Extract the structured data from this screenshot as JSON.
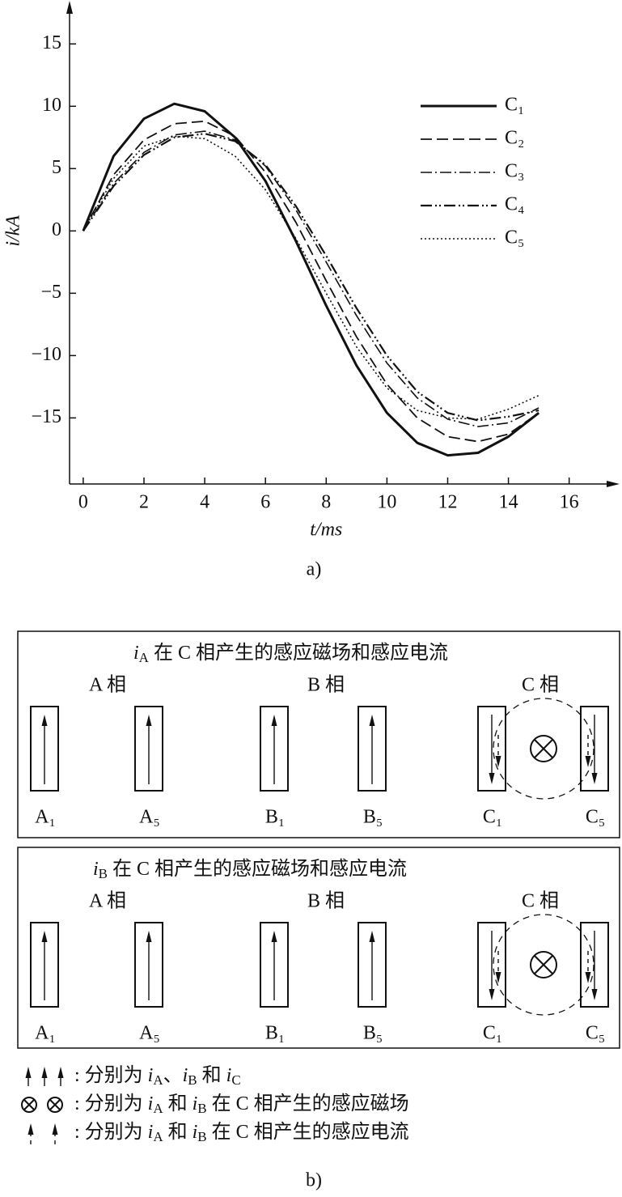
{
  "chart_data": {
    "type": "line",
    "x_label": "t/ms",
    "y_label": "i/kA",
    "caption": "a)",
    "x": [
      0,
      1,
      2,
      3,
      4,
      5,
      6,
      7,
      8,
      9,
      10,
      11,
      12,
      13,
      14,
      15
    ],
    "series": [
      {
        "name": "C₁",
        "color": "#111111",
        "width": 3,
        "dash": "",
        "values": [
          0,
          6.0,
          9.0,
          10.2,
          9.6,
          7.5,
          4.0,
          -0.8,
          -6.0,
          -10.8,
          -14.6,
          -17.0,
          -18.0,
          -17.8,
          -16.5,
          -14.6
        ]
      },
      {
        "name": "C₂",
        "color": "#111111",
        "width": 1.8,
        "dash": "14 6",
        "values": [
          0,
          4.5,
          7.3,
          8.6,
          8.8,
          7.6,
          4.7,
          0.7,
          -4.0,
          -8.5,
          -12.3,
          -15.0,
          -16.5,
          -16.9,
          -16.3,
          -14.6
        ]
      },
      {
        "name": "C₃",
        "color": "#111111",
        "width": 1.6,
        "dash": "14 4 2 4",
        "values": [
          0,
          3.8,
          6.3,
          7.7,
          8.0,
          7.3,
          5.2,
          1.7,
          -2.5,
          -6.8,
          -10.6,
          -13.4,
          -15.1,
          -15.7,
          -15.4,
          -14.2
        ]
      },
      {
        "name": "C₄",
        "color": "#111111",
        "width": 2.2,
        "dash": "14 4 2 3 2 4",
        "values": [
          0,
          3.6,
          6.1,
          7.5,
          7.8,
          7.2,
          5.3,
          2.0,
          -2.0,
          -6.2,
          -10.0,
          -12.9,
          -14.6,
          -15.2,
          -14.9,
          -14.4
        ]
      },
      {
        "name": "C₅",
        "color": "#111111",
        "width": 1.6,
        "dash": "2 3",
        "values": [
          0,
          4.2,
          6.8,
          7.6,
          7.4,
          6.0,
          3.3,
          -0.6,
          -5.0,
          -9.3,
          -12.6,
          -14.4,
          -15.0,
          -15.1,
          -14.3,
          -13.2
        ]
      }
    ],
    "xlim": [
      -0.45,
      17.5
    ],
    "ylim": [
      -20.3,
      18.2
    ],
    "xticks": [
      0,
      2,
      4,
      6,
      8,
      10,
      12,
      14,
      16
    ],
    "yticks": [
      {
        "value": -15,
        "label": "−15"
      },
      {
        "value": -10,
        "label": "−10"
      },
      {
        "value": -5,
        "label": "−5"
      },
      0,
      5,
      10,
      15
    ]
  },
  "diagram": {
    "caption": "b)",
    "panels": [
      {
        "title_var": "i",
        "title_sub": "A",
        "title_text": " 在 C 相产生的感应磁场和感应电流",
        "phases": [
          "A 相",
          "B 相",
          "C 相"
        ],
        "conductors": [
          "A₁",
          "A₅",
          "B₁",
          "B₅",
          "C₁",
          "C₅"
        ]
      },
      {
        "title_var": "i",
        "title_sub": "B",
        "title_text": " 在 C 相产生的感应磁场和感应电流",
        "phases": [
          "A 相",
          "B 相",
          "C 相"
        ],
        "conductors": [
          "A₁",
          "A₅",
          "B₁",
          "B₅",
          "C₁",
          "C₅"
        ]
      }
    ],
    "notes": [
      [
        {
          "t": ": 分别为 ",
          "k": "n"
        },
        {
          "t": "i",
          "k": "it"
        },
        {
          "t": "A",
          "k": "sub"
        },
        {
          "t": "、",
          "k": "n"
        },
        {
          "t": "i",
          "k": "it"
        },
        {
          "t": "B",
          "k": "sub"
        },
        {
          "t": " 和 ",
          "k": "n"
        },
        {
          "t": "i",
          "k": "it"
        },
        {
          "t": "C",
          "k": "sub"
        }
      ],
      [
        {
          "t": ": 分别为 ",
          "k": "n"
        },
        {
          "t": "i",
          "k": "it"
        },
        {
          "t": "A",
          "k": "sub"
        },
        {
          "t": " 和 ",
          "k": "n"
        },
        {
          "t": "i",
          "k": "it"
        },
        {
          "t": "B",
          "k": "sub"
        },
        {
          "t": " 在 C 相产生的感应磁场",
          "k": "n"
        }
      ],
      [
        {
          "t": ": 分别为 ",
          "k": "n"
        },
        {
          "t": "i",
          "k": "it"
        },
        {
          "t": "A",
          "k": "sub"
        },
        {
          "t": " 和 ",
          "k": "n"
        },
        {
          "t": "i",
          "k": "it"
        },
        {
          "t": "B",
          "k": "sub"
        },
        {
          "t": " 在 C 相产生的感应电流",
          "k": "n"
        }
      ]
    ]
  }
}
